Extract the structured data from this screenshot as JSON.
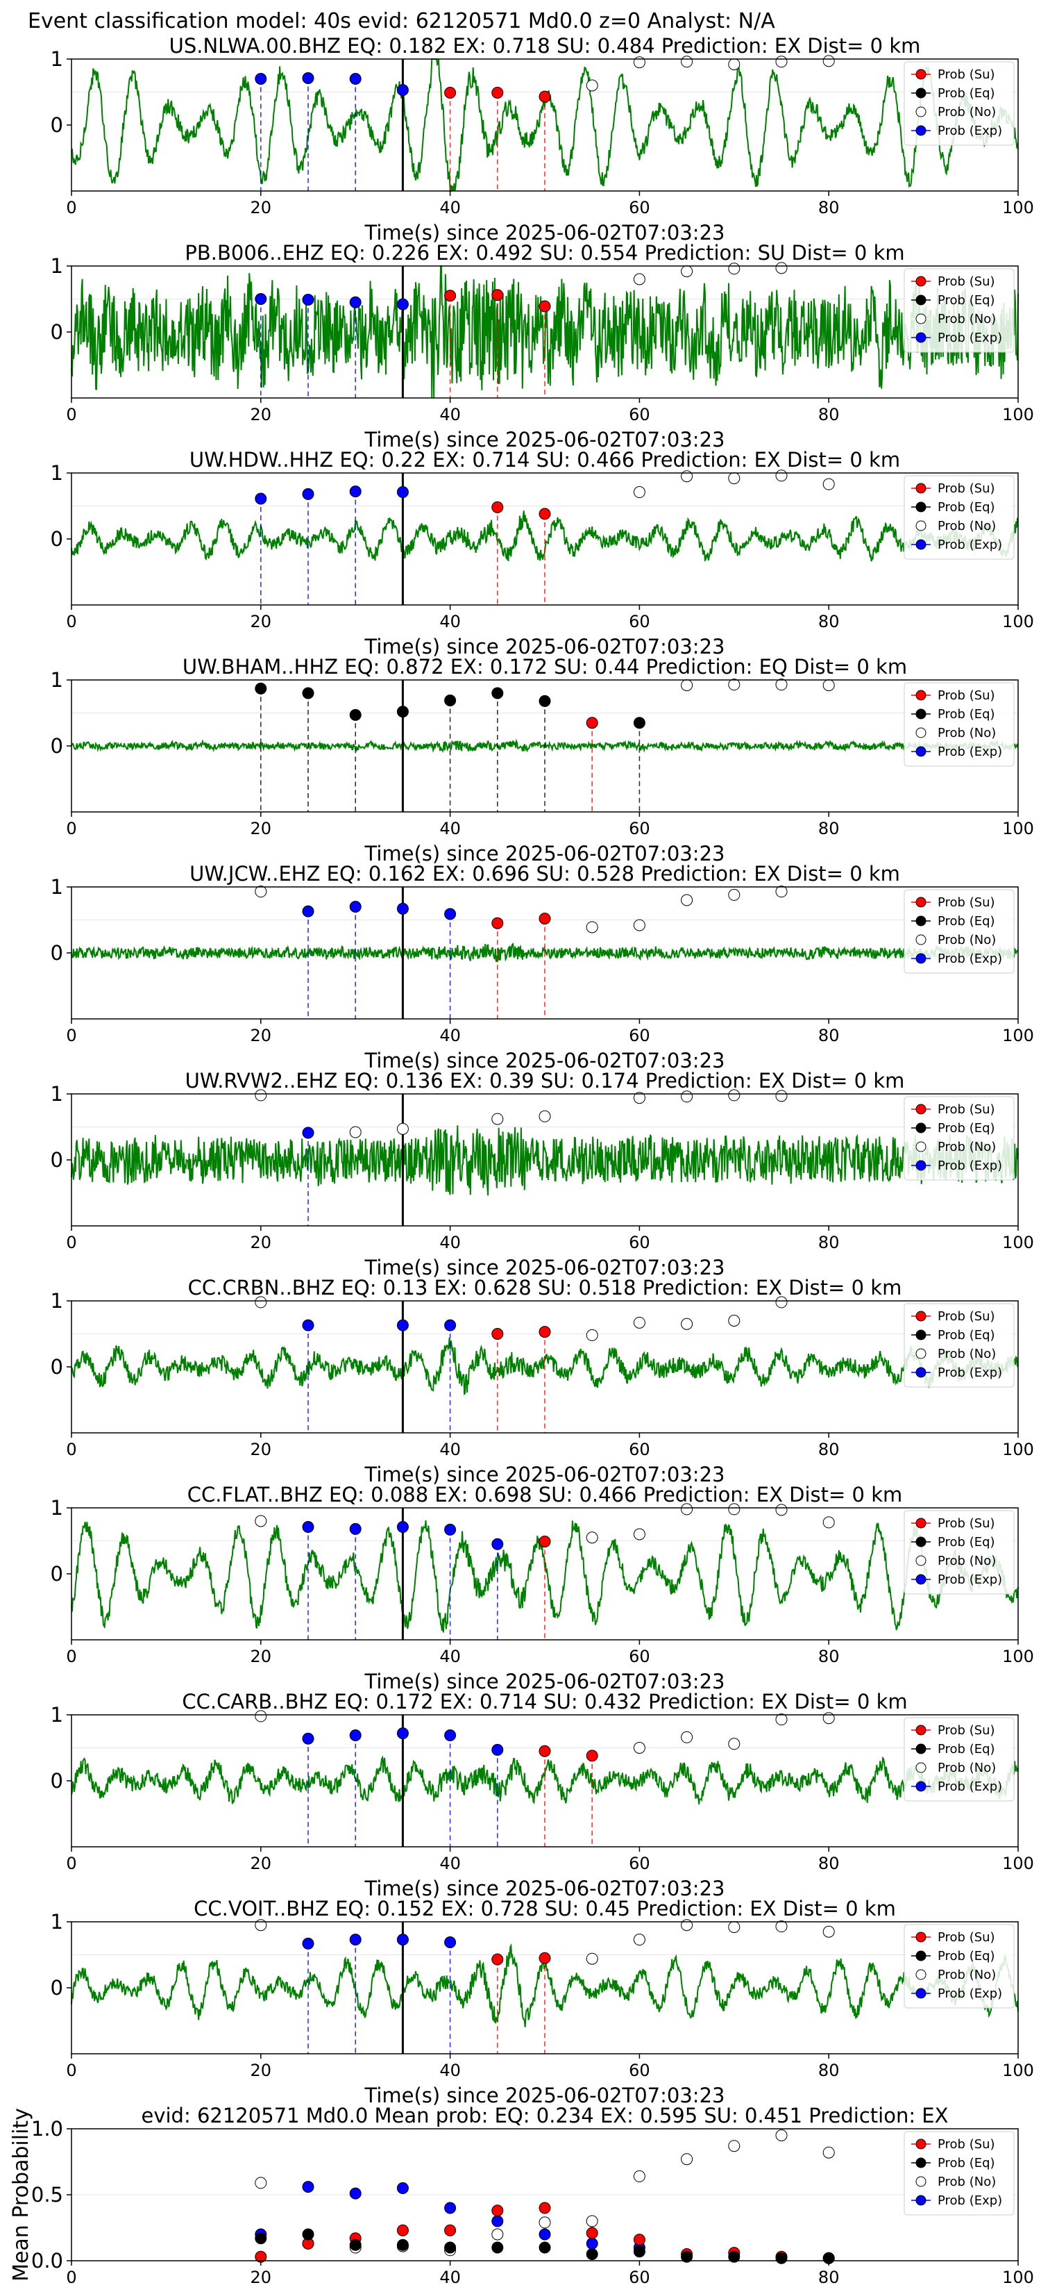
{
  "suptitle": "Event classification model: 40s evid: 62120571 Md0.0 z=0 Analyst: N/A",
  "colors": {
    "waveform": "#008000",
    "Su": "#ff0000",
    "Eq": "#000000",
    "No": "#ffffff",
    "Exp": "#0000ff",
    "grid": "#e6e6e6",
    "pick": "#000000"
  },
  "legend_entries": [
    {
      "key": "Su",
      "label": "Prob (Su)"
    },
    {
      "key": "Eq",
      "label": "Prob (Eq)"
    },
    {
      "key": "No",
      "label": "Prob (No)"
    },
    {
      "key": "Exp",
      "label": "Prob (Exp)"
    }
  ],
  "chart_data": [
    {
      "type": "line",
      "title": "US.NLWA.00.BHZ   EQ: 0.182  EX: 0.718  SU: 0.484   Prediction: EX    Dist= 0 km",
      "xlabel": "Time(s) since 2025-06-02T07:03:23",
      "xlim": [
        0,
        100
      ],
      "ylim": [
        -1,
        1
      ],
      "xticks": [
        "0",
        "20",
        "40",
        "60",
        "80",
        "100"
      ],
      "yticks": [
        "0",
        "1"
      ],
      "waveform_amplitude": 0.85,
      "waveform_noise": 0.12,
      "waveform_period": 4.0,
      "pick": 35,
      "legend": "top-right",
      "series": [
        {
          "key": "Exp",
          "x": [
            20,
            25,
            30,
            35
          ],
          "y": [
            0.7,
            0.71,
            0.7,
            0.53
          ]
        },
        {
          "key": "Su",
          "x": [
            40,
            45,
            50
          ],
          "y": [
            0.49,
            0.49,
            0.43
          ]
        },
        {
          "key": "No",
          "x": [
            55,
            60,
            65,
            70,
            75,
            80
          ],
          "y": [
            0.6,
            0.95,
            0.96,
            0.92,
            0.96,
            0.97
          ]
        }
      ]
    },
    {
      "type": "line",
      "title": "PB.B006..EHZ   EQ: 0.226  EX: 0.492  SU: 0.554   Prediction: SU    Dist= 0 km",
      "xlabel": "Time(s) since 2025-06-02T07:03:23",
      "xlim": [
        0,
        100
      ],
      "ylim": [
        -1,
        1
      ],
      "xticks": [
        "0",
        "20",
        "40",
        "60",
        "80",
        "100"
      ],
      "yticks": [
        "0",
        "1"
      ],
      "waveform_amplitude": 0.3,
      "waveform_noise": 0.6,
      "waveform_period": 2.5,
      "pick": 35,
      "legend": "top-right",
      "series": [
        {
          "key": "Exp",
          "x": [
            20,
            25,
            30,
            35
          ],
          "y": [
            0.5,
            0.49,
            0.45,
            0.42
          ]
        },
        {
          "key": "Su",
          "x": [
            40,
            45,
            50
          ],
          "y": [
            0.55,
            0.56,
            0.39
          ]
        },
        {
          "key": "No",
          "x": [
            60,
            65,
            70,
            75
          ],
          "y": [
            0.8,
            0.92,
            0.96,
            0.97
          ]
        }
      ]
    },
    {
      "type": "line",
      "title": "UW.HDW..HHZ   EQ: 0.22  EX: 0.714  SU: 0.466   Prediction: EX    Dist= 0 km",
      "xlabel": "Time(s) since 2025-06-02T07:03:23",
      "xlim": [
        0,
        100
      ],
      "ylim": [
        -1,
        1
      ],
      "xticks": [
        "0",
        "20",
        "40",
        "60",
        "80",
        "100"
      ],
      "yticks": [
        "0",
        "1"
      ],
      "waveform_amplitude": 0.25,
      "waveform_noise": 0.1,
      "waveform_period": 3.5,
      "pick": 35,
      "legend": "top-right",
      "series": [
        {
          "key": "Exp",
          "x": [
            20,
            25,
            30,
            35
          ],
          "y": [
            0.61,
            0.68,
            0.72,
            0.71
          ]
        },
        {
          "key": "Su",
          "x": [
            45,
            50
          ],
          "y": [
            0.48,
            0.38
          ]
        },
        {
          "key": "No",
          "x": [
            60,
            65,
            70,
            75,
            80
          ],
          "y": [
            0.71,
            0.95,
            0.92,
            0.96,
            0.83
          ]
        }
      ]
    },
    {
      "type": "line",
      "title": "UW.BHAM..HHZ   EQ: 0.872  EX: 0.172  SU: 0.44   Prediction: EQ    Dist= 0 km",
      "xlabel": "Time(s) since 2025-06-02T07:03:23",
      "xlim": [
        0,
        100
      ],
      "ylim": [
        -1,
        1
      ],
      "xticks": [
        "0",
        "20",
        "40",
        "60",
        "80",
        "100"
      ],
      "yticks": [
        "0",
        "1"
      ],
      "waveform_amplitude": 0.02,
      "waveform_noise": 0.05,
      "waveform_period": 3.0,
      "pick": 35,
      "legend": "top-right",
      "series": [
        {
          "key": "Eq",
          "x": [
            20,
            25,
            30,
            35,
            40,
            45,
            50,
            60
          ],
          "y": [
            0.87,
            0.8,
            0.47,
            0.52,
            0.69,
            0.8,
            0.68,
            0.35
          ]
        },
        {
          "key": "Su",
          "x": [
            55
          ],
          "y": [
            0.35
          ]
        },
        {
          "key": "No",
          "x": [
            65,
            70,
            75,
            80
          ],
          "y": [
            0.92,
            0.93,
            0.93,
            0.92
          ]
        }
      ]
    },
    {
      "type": "line",
      "title": "UW.JCW..EHZ   EQ: 0.162  EX: 0.696  SU: 0.528   Prediction: EX    Dist= 0 km",
      "xlabel": "Time(s) since 2025-06-02T07:03:23",
      "xlim": [
        0,
        100
      ],
      "ylim": [
        -1,
        1
      ],
      "xticks": [
        "0",
        "20",
        "40",
        "60",
        "80",
        "100"
      ],
      "yticks": [
        "0",
        "1"
      ],
      "waveform_amplitude": 0.02,
      "waveform_noise": 0.08,
      "waveform_period": 3.0,
      "pick": 35,
      "legend": "top-right",
      "series": [
        {
          "key": "No",
          "x": [
            20,
            55,
            60,
            65,
            70,
            75
          ],
          "y": [
            0.93,
            0.39,
            0.42,
            0.8,
            0.88,
            0.93
          ]
        },
        {
          "key": "Exp",
          "x": [
            25,
            30,
            35,
            40
          ],
          "y": [
            0.63,
            0.7,
            0.67,
            0.59
          ]
        },
        {
          "key": "Su",
          "x": [
            45,
            50
          ],
          "y": [
            0.45,
            0.52
          ]
        }
      ]
    },
    {
      "type": "line",
      "title": "UW.RVW2..EHZ   EQ: 0.136  EX: 0.39  SU: 0.174   Prediction: EX    Dist= 0 km",
      "xlabel": "Time(s) since 2025-06-02T07:03:23",
      "xlim": [
        0,
        100
      ],
      "ylim": [
        -1,
        1
      ],
      "xticks": [
        "0",
        "20",
        "40",
        "60",
        "80",
        "100"
      ],
      "yticks": [
        "0",
        "1"
      ],
      "waveform_amplitude": 0.05,
      "waveform_noise": 0.35,
      "waveform_period": 2.0,
      "pick": 35,
      "legend": "top-right",
      "series": [
        {
          "key": "No",
          "x": [
            20,
            30,
            35,
            45,
            50,
            60,
            65,
            70,
            75
          ],
          "y": [
            0.98,
            0.42,
            0.47,
            0.62,
            0.66,
            0.94,
            0.96,
            0.98,
            0.97
          ]
        },
        {
          "key": "Exp",
          "x": [
            25
          ],
          "y": [
            0.41
          ]
        }
      ]
    },
    {
      "type": "line",
      "title": "CC.CRBN..BHZ   EQ: 0.13  EX: 0.628  SU: 0.518   Prediction: EX    Dist= 0 km",
      "xlabel": "Time(s) since 2025-06-02T07:03:23",
      "xlim": [
        0,
        100
      ],
      "ylim": [
        -1,
        1
      ],
      "xticks": [
        "0",
        "20",
        "40",
        "60",
        "80",
        "100"
      ],
      "yticks": [
        "0",
        "1"
      ],
      "waveform_amplitude": 0.22,
      "waveform_noise": 0.12,
      "waveform_period": 3.5,
      "pick": 35,
      "legend": "top-right",
      "series": [
        {
          "key": "No",
          "x": [
            20,
            55,
            60,
            65,
            70,
            75
          ],
          "y": [
            0.98,
            0.48,
            0.67,
            0.65,
            0.7,
            0.98
          ]
        },
        {
          "key": "Exp",
          "x": [
            25,
            35,
            40
          ],
          "y": [
            0.63,
            0.63,
            0.63
          ]
        },
        {
          "key": "Su",
          "x": [
            45,
            50
          ],
          "y": [
            0.5,
            0.53
          ]
        }
      ]
    },
    {
      "type": "line",
      "title": "CC.FLAT..BHZ   EQ: 0.088  EX: 0.698  SU: 0.466   Prediction: EX    Dist= 0 km",
      "xlabel": "Time(s) since 2025-06-02T07:03:23",
      "xlim": [
        0,
        100
      ],
      "ylim": [
        -1,
        1
      ],
      "xticks": [
        "0",
        "20",
        "40",
        "60",
        "80",
        "100"
      ],
      "yticks": [
        "0",
        "1"
      ],
      "waveform_amplitude": 0.75,
      "waveform_noise": 0.12,
      "waveform_period": 4.0,
      "pick": 35,
      "legend": "top-right",
      "series": [
        {
          "key": "No",
          "x": [
            20,
            55,
            60,
            65,
            70,
            75,
            80
          ],
          "y": [
            0.8,
            0.55,
            0.6,
            0.98,
            0.98,
            0.97,
            0.78
          ]
        },
        {
          "key": "Exp",
          "x": [
            25,
            30,
            35,
            40,
            45
          ],
          "y": [
            0.71,
            0.68,
            0.71,
            0.67,
            0.45
          ]
        },
        {
          "key": "Su",
          "x": [
            50
          ],
          "y": [
            0.49
          ]
        }
      ]
    },
    {
      "type": "line",
      "title": "CC.CARB..BHZ   EQ: 0.172  EX: 0.714  SU: 0.432   Prediction: EX    Dist= 0 km",
      "xlabel": "Time(s) since 2025-06-02T07:03:23",
      "xlim": [
        0,
        100
      ],
      "ylim": [
        -1,
        1
      ],
      "xticks": [
        "0",
        "20",
        "40",
        "60",
        "80",
        "100"
      ],
      "yticks": [
        "0",
        "1"
      ],
      "waveform_amplitude": 0.25,
      "waveform_noise": 0.12,
      "waveform_period": 3.5,
      "pick": 35,
      "legend": "top-right",
      "series": [
        {
          "key": "No",
          "x": [
            20,
            60,
            65,
            70,
            75,
            80
          ],
          "y": [
            0.98,
            0.5,
            0.66,
            0.56,
            0.93,
            0.95
          ]
        },
        {
          "key": "Exp",
          "x": [
            25,
            30,
            35,
            40,
            45
          ],
          "y": [
            0.64,
            0.69,
            0.72,
            0.69,
            0.47
          ]
        },
        {
          "key": "Su",
          "x": [
            50,
            55
          ],
          "y": [
            0.45,
            0.38
          ]
        }
      ]
    },
    {
      "type": "line",
      "title": "CC.VOIT..BHZ   EQ: 0.152  EX: 0.728  SU: 0.45   Prediction: EX    Dist= 0 km",
      "xlabel": "Time(s) since 2025-06-02T07:03:23",
      "xlim": [
        0,
        100
      ],
      "ylim": [
        -1,
        1
      ],
      "xticks": [
        "0",
        "20",
        "40",
        "60",
        "80",
        "100"
      ],
      "yticks": [
        "0",
        "1"
      ],
      "waveform_amplitude": 0.4,
      "waveform_noise": 0.1,
      "waveform_period": 3.5,
      "pick": 35,
      "legend": "top-right",
      "series": [
        {
          "key": "No",
          "x": [
            20,
            55,
            60,
            65,
            70,
            75,
            80
          ],
          "y": [
            0.95,
            0.44,
            0.73,
            0.95,
            0.92,
            0.93,
            0.85
          ]
        },
        {
          "key": "Exp",
          "x": [
            25,
            30,
            35,
            40
          ],
          "y": [
            0.67,
            0.73,
            0.73,
            0.69
          ]
        },
        {
          "key": "Su",
          "x": [
            45,
            50
          ],
          "y": [
            0.43,
            0.45
          ]
        }
      ]
    },
    {
      "type": "scatter",
      "title": "evid: 62120571  Md0.0   Mean prob:   EQ: 0.234  EX: 0.595  SU: 0.451   Prediction: EX",
      "ylabel": "Mean Probability",
      "xlim": [
        0,
        100
      ],
      "ylim": [
        0,
        1
      ],
      "xticks": [
        "0",
        "20",
        "40",
        "60",
        "80",
        "100"
      ],
      "yticks": [
        "0.0",
        "0.5",
        "1.0"
      ],
      "legend": "top-right",
      "series": [
        {
          "key": "No",
          "x": [
            20,
            25,
            30,
            35,
            40,
            45,
            50,
            55,
            60,
            65,
            70,
            75,
            80
          ],
          "y": [
            0.59,
            0.13,
            0.1,
            0.11,
            0.08,
            0.2,
            0.29,
            0.3,
            0.64,
            0.77,
            0.87,
            0.95,
            0.82
          ]
        },
        {
          "key": "Exp",
          "x": [
            20,
            25,
            30,
            35,
            40,
            45,
            50,
            55,
            60
          ],
          "y": [
            0.2,
            0.56,
            0.51,
            0.55,
            0.4,
            0.3,
            0.2,
            0.13,
            0.1
          ]
        },
        {
          "key": "Su",
          "x": [
            20,
            25,
            30,
            35,
            40,
            45,
            50,
            55,
            60,
            65,
            70,
            75,
            80
          ],
          "y": [
            0.03,
            0.13,
            0.17,
            0.23,
            0.23,
            0.38,
            0.4,
            0.21,
            0.16,
            0.05,
            0.06,
            0.03,
            0.02
          ]
        },
        {
          "key": "Eq",
          "x": [
            20,
            25,
            30,
            35,
            40,
            45,
            50,
            55,
            60,
            65,
            70,
            75,
            80
          ],
          "y": [
            0.17,
            0.2,
            0.12,
            0.12,
            0.1,
            0.1,
            0.1,
            0.05,
            0.07,
            0.03,
            0.03,
            0.02,
            0.02
          ]
        }
      ]
    }
  ]
}
